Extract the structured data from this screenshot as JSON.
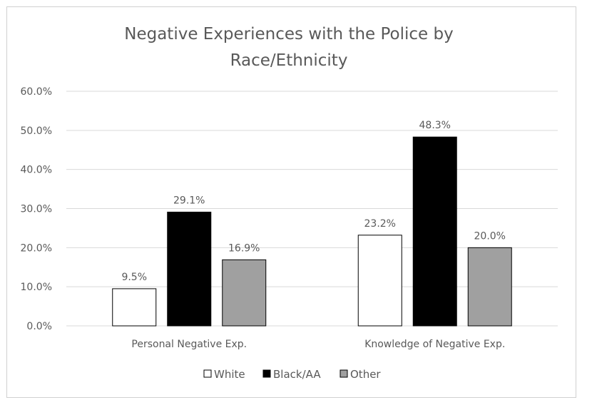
{
  "chart_data": {
    "type": "bar",
    "title": "Negative Experiences with the Police by Race/Ethnicity",
    "title_lines": [
      "Negative Experiences with the Police by",
      "Race/Ethnicity"
    ],
    "categories": [
      "Personal Negative Exp.",
      "Knowledge of Negative Exp."
    ],
    "series": [
      {
        "name": "White",
        "values": [
          9.5,
          23.2
        ],
        "color": "#ffffff"
      },
      {
        "name": "Black/AA",
        "values": [
          29.1,
          48.3
        ],
        "color": "#000000"
      },
      {
        "name": "Other",
        "values": [
          16.9,
          20.0
        ],
        "color": "#a0a0a0"
      }
    ],
    "ylim": [
      0,
      60
    ],
    "yticks": [
      "0.0%",
      "10.0%",
      "20.0%",
      "30.0%",
      "40.0%",
      "50.0%",
      "60.0%"
    ],
    "data_labels": [
      [
        "9.5%",
        "23.2%"
      ],
      [
        "29.1%",
        "48.3%"
      ],
      [
        "16.9%",
        "20.0%"
      ]
    ],
    "grid": true,
    "legend": "bottom",
    "xlabel": "",
    "ylabel": ""
  }
}
